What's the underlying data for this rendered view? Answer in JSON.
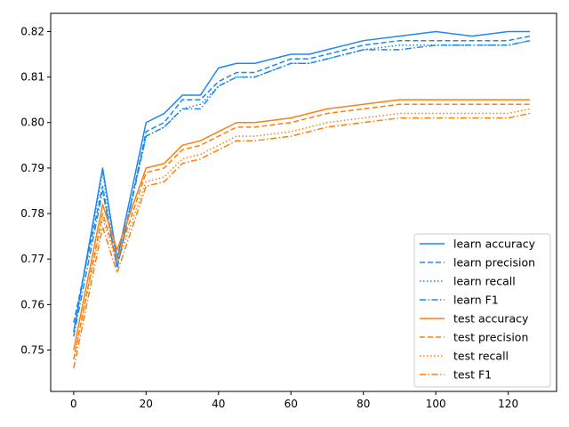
{
  "chart_data": {
    "type": "line",
    "title": "",
    "xlabel": "",
    "ylabel": "",
    "xlim": [
      -6.35,
      133.35
    ],
    "ylim": [
      0.7409,
      0.824
    ],
    "x_ticks": [
      0,
      20,
      40,
      60,
      80,
      100,
      120
    ],
    "x_tick_labels": [
      "0",
      "20",
      "40",
      "60",
      "80",
      "100",
      "120"
    ],
    "y_ticks": [
      0.75,
      0.76,
      0.77,
      0.78,
      0.79,
      0.8,
      0.81,
      0.82
    ],
    "y_tick_labels": [
      "0.75",
      "0.76",
      "0.77",
      "0.78",
      "0.79",
      "0.80",
      "0.81",
      "0.82"
    ],
    "grid": false,
    "legend_position": "lower-right",
    "colors": {
      "learn": "#1f88f0",
      "test": "#ff7f0e"
    },
    "x": [
      0,
      8,
      12,
      20,
      25,
      30,
      35,
      40,
      45,
      50,
      60,
      65,
      70,
      80,
      90,
      100,
      110,
      120,
      126
    ],
    "series": [
      {
        "name": "learn accuracy",
        "color": "#1f88f0",
        "dash": "solid",
        "values": [
          0.754,
          0.79,
          0.77,
          0.8,
          0.802,
          0.806,
          0.806,
          0.812,
          0.813,
          0.813,
          0.815,
          0.815,
          0.816,
          0.818,
          0.819,
          0.82,
          0.819,
          0.82,
          0.82
        ]
      },
      {
        "name": "learn precision",
        "color": "#1f88f0",
        "dash": "dashed",
        "values": [
          0.756,
          0.786,
          0.768,
          0.798,
          0.8,
          0.805,
          0.805,
          0.809,
          0.811,
          0.811,
          0.814,
          0.814,
          0.815,
          0.817,
          0.818,
          0.818,
          0.818,
          0.818,
          0.819
        ]
      },
      {
        "name": "learn recall",
        "color": "#1f88f0",
        "dash": "dotted",
        "values": [
          0.754,
          0.789,
          0.769,
          0.797,
          0.799,
          0.803,
          0.804,
          0.808,
          0.81,
          0.81,
          0.813,
          0.813,
          0.814,
          0.816,
          0.817,
          0.817,
          0.817,
          0.817,
          0.818
        ]
      },
      {
        "name": "learn F1",
        "color": "#1f88f0",
        "dash": "dashdot",
        "values": [
          0.753,
          0.785,
          0.768,
          0.797,
          0.799,
          0.803,
          0.803,
          0.808,
          0.81,
          0.81,
          0.813,
          0.813,
          0.814,
          0.816,
          0.816,
          0.817,
          0.817,
          0.817,
          0.818
        ]
      },
      {
        "name": "test accuracy",
        "color": "#ff7f0e",
        "dash": "solid",
        "values": [
          0.75,
          0.782,
          0.772,
          0.79,
          0.791,
          0.795,
          0.796,
          0.798,
          0.8,
          0.8,
          0.801,
          0.802,
          0.803,
          0.804,
          0.805,
          0.805,
          0.805,
          0.805,
          0.805
        ]
      },
      {
        "name": "test precision",
        "color": "#ff7f0e",
        "dash": "dashed",
        "values": [
          0.748,
          0.78,
          0.77,
          0.789,
          0.79,
          0.794,
          0.795,
          0.797,
          0.799,
          0.799,
          0.8,
          0.801,
          0.802,
          0.803,
          0.804,
          0.804,
          0.804,
          0.804,
          0.804
        ]
      },
      {
        "name": "test recall",
        "color": "#ff7f0e",
        "dash": "dotted",
        "values": [
          0.748,
          0.779,
          0.769,
          0.787,
          0.788,
          0.792,
          0.793,
          0.795,
          0.797,
          0.797,
          0.798,
          0.799,
          0.8,
          0.801,
          0.802,
          0.802,
          0.802,
          0.802,
          0.803
        ]
      },
      {
        "name": "test F1",
        "color": "#ff7f0e",
        "dash": "dashdot",
        "values": [
          0.746,
          0.777,
          0.767,
          0.786,
          0.787,
          0.791,
          0.792,
          0.794,
          0.796,
          0.796,
          0.797,
          0.798,
          0.799,
          0.8,
          0.801,
          0.801,
          0.801,
          0.801,
          0.802
        ]
      }
    ]
  }
}
